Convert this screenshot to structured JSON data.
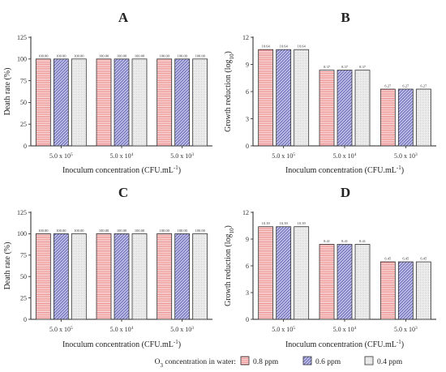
{
  "legend": {
    "title_main": "O",
    "title_sub": "3",
    "title_rest": " concentration in water:",
    "items": [
      {
        "label": "0.8 ppm",
        "color": "#f3a0a0",
        "pattern": "hlines"
      },
      {
        "label": "0.6 ppm",
        "color": "#a9a9dc",
        "pattern": "diag"
      },
      {
        "label": "0.4 ppm",
        "color": "#ececec",
        "pattern": "dots"
      }
    ]
  },
  "chart_data": [
    {
      "panel": "A",
      "type": "bar",
      "categories": [
        {
          "base": "5.0 x 10",
          "exp": "5"
        },
        {
          "base": "5.0 x 10",
          "exp": "4"
        },
        {
          "base": "5.0 x 10",
          "exp": "3"
        }
      ],
      "series": [
        {
          "name": "0.8 ppm",
          "values": [
            100,
            100,
            100
          ],
          "labels": [
            "100.00",
            "100.00",
            "100.00"
          ]
        },
        {
          "name": "0.6 ppm",
          "values": [
            100,
            100,
            100
          ],
          "labels": [
            "100.00",
            "100.00",
            "100.00"
          ]
        },
        {
          "name": "0.4 ppm",
          "values": [
            100,
            100,
            100
          ],
          "labels": [
            "100.00",
            "100.00",
            "100.00"
          ]
        }
      ],
      "ylabel": "Death rate (%)",
      "xlabel": {
        "main": "Inoculum concentration (CFU.mL",
        "sup": "-1",
        "end": ")"
      },
      "ylim": [
        0,
        125
      ],
      "yticks": [
        0,
        25,
        50,
        75,
        100,
        125
      ]
    },
    {
      "panel": "B",
      "type": "bar",
      "categories": [
        {
          "base": "5.0 x 10",
          "exp": "5"
        },
        {
          "base": "5.0 x 10",
          "exp": "4"
        },
        {
          "base": "5.0 x 10",
          "exp": "3"
        }
      ],
      "series": [
        {
          "name": "0.8 ppm",
          "values": [
            10.64,
            8.37,
            6.27
          ],
          "labels": [
            "10.64",
            "8.37",
            "6.27"
          ]
        },
        {
          "name": "0.6 ppm",
          "values": [
            10.64,
            8.37,
            6.27
          ],
          "labels": [
            "10.64",
            "8.37",
            "6.27"
          ]
        },
        {
          "name": "0.4 ppm",
          "values": [
            10.64,
            8.37,
            6.27
          ],
          "labels": [
            "10.64",
            "8.37",
            "6.27"
          ]
        }
      ],
      "ylabel": {
        "main": "Growth reduction (log",
        "sub": "10",
        "end": ")"
      },
      "xlabel": {
        "main": "Inoculum concentration (CFU.mL",
        "sup": "-1",
        "end": ")"
      },
      "ylim": [
        0,
        12
      ],
      "yticks": [
        0,
        3,
        6,
        9,
        12
      ]
    },
    {
      "panel": "C",
      "type": "bar",
      "categories": [
        {
          "base": "5.0 x 10",
          "exp": "5"
        },
        {
          "base": "5.0 x 10",
          "exp": "4"
        },
        {
          "base": "5.0 x 10",
          "exp": "3"
        }
      ],
      "series": [
        {
          "name": "0.8 ppm",
          "values": [
            100,
            100,
            100
          ],
          "labels": [
            "100.00",
            "100.00",
            "100.00"
          ]
        },
        {
          "name": "0.6 ppm",
          "values": [
            100,
            100,
            100
          ],
          "labels": [
            "100.00",
            "100.00",
            "100.00"
          ]
        },
        {
          "name": "0.4 ppm",
          "values": [
            100,
            100,
            100
          ],
          "labels": [
            "100.00",
            "100.00",
            "100.00"
          ]
        }
      ],
      "ylabel": "Death rate (%)",
      "xlabel": {
        "main": "Inoculum concentration (CFU.mL",
        "sup": "-1",
        "end": ")"
      },
      "ylim": [
        0,
        125
      ],
      "yticks": [
        0,
        25,
        50,
        75,
        100,
        125
      ]
    },
    {
      "panel": "D",
      "type": "bar",
      "categories": [
        {
          "base": "5.0 x 10",
          "exp": "5"
        },
        {
          "base": "5.0 x 10",
          "exp": "4"
        },
        {
          "base": "5.0 x 10",
          "exp": "3"
        }
      ],
      "series": [
        {
          "name": "0.8 ppm",
          "values": [
            10.39,
            8.41,
            6.45
          ],
          "labels": [
            "10.39",
            "8.41",
            "6.45"
          ]
        },
        {
          "name": "0.6 ppm",
          "values": [
            10.39,
            8.41,
            6.45
          ],
          "labels": [
            "10.39",
            "8.41",
            "6.45"
          ]
        },
        {
          "name": "0.4 ppm",
          "values": [
            10.39,
            8.41,
            6.45
          ],
          "labels": [
            "10.39",
            "8.41",
            "6.45"
          ]
        }
      ],
      "ylabel": {
        "main": "Growth reduction (log",
        "sub": "10",
        "end": ")"
      },
      "xlabel": {
        "main": "Inoculum concentration (CFU.mL",
        "sup": "-1",
        "end": ")"
      },
      "ylim": [
        0,
        12
      ],
      "yticks": [
        0,
        3,
        6,
        9,
        12
      ]
    }
  ]
}
